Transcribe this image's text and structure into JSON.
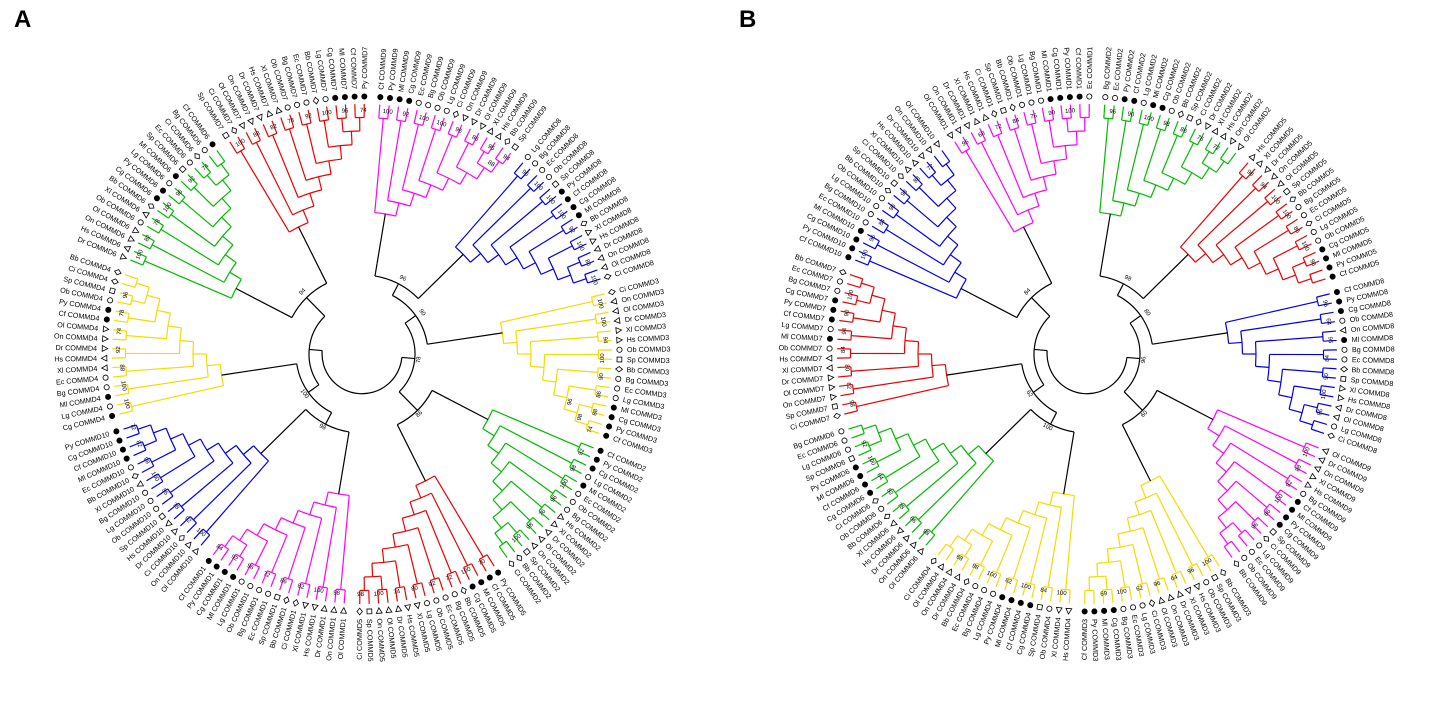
{
  "chart_data": {
    "type": "circular-phylogenetic-tree",
    "description": "Two circular phylogenetic trees (panels A and B) of COMMD1-COMMD10 proteins across 16 species. Branch clusters colored by gene family; tips carry species symbols; numbers are bootstrap values.",
    "colors": {
      "red": "#ee0000",
      "green": "#00bb00",
      "yellow": "#f2dc00",
      "blue": "#0000ee",
      "magenta": "#ff00ff",
      "black": "#000000"
    },
    "species_symbols": {
      "Py": "circle-filled",
      "Cf": "circle-filled",
      "Ml": "circle-filled",
      "Cg": "circle-filled",
      "Lg": "circle-open",
      "Ob": "circle-open",
      "Bg": "circle-open",
      "Ec": "circle-open",
      "Hs": "triangle-up",
      "Xl": "triangle-up",
      "Dr": "triangle-down",
      "Ol": "triangle-down",
      "On": "triangle-down",
      "Sp": "square-open",
      "Bb": "diamond-open",
      "Ci": "diamond-open"
    },
    "panels": [
      {
        "label": "A",
        "backbone_bootstraps": [
          96,
          90,
          86,
          78,
          98,
          100,
          94
        ],
        "clusters": [
          {
            "gene": "COMMD9",
            "color": "magenta",
            "bootstraps": [
              100,
              92,
              100,
              100,
              96,
              86,
              95,
              94,
              88
            ],
            "species_order": [
              "Cf",
              "Py",
              "Ml",
              "Cg",
              "Ec",
              "Bg",
              "Ob",
              "Lg",
              "Ci",
              "On",
              "Dr",
              "Ol",
              "Xl",
              "Hs",
              "Bb",
              "Sp"
            ]
          },
          {
            "gene": "COMMD8",
            "color": "blue",
            "bootstraps": [
              96,
              100,
              100,
              100,
              92,
              100,
              86,
              100
            ],
            "species_order": [
              "Lg",
              "Bg",
              "Ec",
              "Ob",
              "Sp",
              "Py",
              "Cf",
              "Cg",
              "Ml",
              "Bb",
              "Xl",
              "Hs",
              "Dr",
              "On",
              "Ol",
              "Ci"
            ]
          },
          {
            "gene": "COMMD3",
            "color": "yellow",
            "bootstraps": [
              100,
              100,
              94,
              100,
              90,
              86,
              88,
              74,
              98,
              96
            ],
            "species_order": [
              "Ci",
              "On",
              "Ol",
              "Dr",
              "Xl",
              "Hs",
              "Ob",
              "Sp",
              "Bb",
              "Bg",
              "Ec",
              "Lg",
              "Ml",
              "Cg",
              "Py",
              "Cf"
            ]
          },
          {
            "gene": "COMMD2",
            "color": "green",
            "bootstraps": [
              92,
              98,
              100,
              96,
              76,
              98,
              100
            ],
            "species_order": [
              "Cf",
              "Py",
              "Cg",
              "Lg",
              "Ml",
              "Ec",
              "Ob",
              "Bg",
              "Hs",
              "Xl",
              "Dr",
              "Ol",
              "On",
              "Sp",
              "Bb",
              "Ci"
            ]
          },
          {
            "gene": "COMMD5",
            "color": "red",
            "bootstraps": [
              70,
              100,
              72,
              92,
              80,
              74,
              100,
              98
            ],
            "species_order": [
              "Py",
              "Cf",
              "Ml",
              "Cg",
              "Bb",
              "Bg",
              "Ec",
              "Ob",
              "Lg",
              "Xl",
              "Hs",
              "Dr",
              "Ol",
              "On",
              "Sp",
              "Ci"
            ]
          },
          {
            "gene": "COMMD1",
            "color": "magenta",
            "bootstraps": [
              98,
              100,
              82,
              86,
              72,
              96,
              92,
              84
            ],
            "species_order": [
              "Ol",
              "On",
              "Dr",
              "Hs",
              "Xl",
              "Ci",
              "Bb",
              "Sp",
              "Ec",
              "Bg",
              "Ob",
              "Lg",
              "Ml",
              "Cg",
              "Py",
              "Cf"
            ]
          },
          {
            "gene": "COMMD10",
            "color": "blue",
            "bootstraps": [
              100,
              92,
              78,
              86,
              100,
              98,
              82,
              72
            ],
            "species_order": [
              "Ol",
              "On",
              "Ci",
              "Dr",
              "Hs",
              "Sp",
              "Ob",
              "Lg",
              "Bg",
              "Xl",
              "Bb",
              "Ec",
              "Ml",
              "Cf",
              "Cg",
              "Py"
            ]
          },
          {
            "gene": "COMMD4",
            "color": "yellow",
            "bootstraps": [
              100,
              100,
              88,
              92,
              74,
              78,
              96
            ],
            "species_order": [
              "Cg",
              "Lg",
              "Ml",
              "Bg",
              "Ec",
              "Xl",
              "Hs",
              "Dr",
              "On",
              "Ol",
              "Cf",
              "Py",
              "Ob",
              "Sp",
              "Ci",
              "Bb"
            ]
          },
          {
            "gene": "COMMD6",
            "color": "green",
            "bootstraps": [
              100,
              82,
              78,
              100,
              96,
              92,
              74
            ],
            "species_order": [
              "Dr",
              "Hs",
              "On",
              "Ol",
              "Ob",
              "Xl",
              "Bb",
              "Cg",
              "Py",
              "Lg",
              "Ml",
              "Sp",
              "Ec",
              "Ci",
              "Bg",
              "Cf"
            ]
          },
          {
            "gene": "COMMD7",
            "color": "red",
            "bootstraps": [
              100,
              88,
              82,
              78,
              92,
              100,
              96,
              74
            ],
            "species_order": [
              "Sp",
              "Ci",
              "Ol",
              "On",
              "Dr",
              "Hs",
              "Xl",
              "Ob",
              "Bg",
              "Ec",
              "Bb",
              "Lg",
              "Cg",
              "Ml",
              "Cf",
              "Py"
            ]
          }
        ]
      },
      {
        "label": "B",
        "backbone_bootstraps": [
          98,
          80,
          60,
          96,
          100,
          62,
          84
        ],
        "clusters": [
          {
            "gene": "COMMD2",
            "color": "green",
            "bootstraps": [
              96,
              90,
              100,
              98,
              86,
              76,
              72
            ],
            "species_order": [
              "Bg",
              "Ec",
              "Py",
              "Cf",
              "Lg",
              "Ml",
              "Cg",
              "Ob",
              "Bb",
              "Sp",
              "Ci",
              "Dr",
              "Xl",
              "Hs",
              "On",
              "Ol"
            ]
          },
          {
            "gene": "COMMD5",
            "color": "red",
            "bootstraps": [
              98,
              94,
              100,
              100,
              86,
              100,
              96
            ],
            "species_order": [
              "Hs",
              "Xl",
              "Dr",
              "On",
              "Ol",
              "Sp",
              "Bb",
              "Bg",
              "Ec",
              "Ci",
              "Lg",
              "Ob",
              "Cg",
              "Ml",
              "Py",
              "Cf"
            ]
          },
          {
            "gene": "COMMD8",
            "color": "blue",
            "bootstraps": [
              96,
              64,
              96,
              84,
              90,
              100,
              96
            ],
            "species_order": [
              "Cf",
              "Py",
              "Cg",
              "Ob",
              "On",
              "Ml",
              "Bg",
              "Ec",
              "Bb",
              "Sp",
              "Xl",
              "Hs",
              "Dr",
              "Ol",
              "Lg",
              "Ci"
            ]
          },
          {
            "gene": "COMMD9",
            "color": "magenta",
            "bootstraps": [
              100,
              88,
              92,
              100,
              86,
              96
            ],
            "species_order": [
              "Ol",
              "Dr",
              "On",
              "Xl",
              "Hs",
              "Bg",
              "Cf",
              "Ml",
              "Py",
              "Cg",
              "Sp",
              "Ci",
              "Lg",
              "Ec",
              "Ob",
              "Bb"
            ]
          },
          {
            "gene": "COMMD3",
            "color": "yellow",
            "bootstraps": [
              100,
              96,
              64,
              96,
              62,
              100,
              69
            ],
            "species_order": [
              "Bb",
              "Sp",
              "Ob",
              "Hs",
              "Xl",
              "Dr",
              "On",
              "Ol",
              "Ci",
              "Lg",
              "Ec",
              "Bg",
              "Cg",
              "Ml",
              "Py",
              "Cf"
            ]
          },
          {
            "gene": "COMMD4",
            "color": "yellow",
            "bootstraps": [
              100,
              84,
              100,
              62,
              100,
              98,
              68
            ],
            "species_order": [
              "Hs",
              "Xl",
              "Ob",
              "Sp",
              "Cg",
              "Cf",
              "Ml",
              "Py",
              "Lg",
              "Bg",
              "Ec",
              "Bb",
              "Dr",
              "On",
              "Ol",
              "Ci"
            ]
          },
          {
            "gene": "COMMD6",
            "color": "green",
            "bootstraps": [
              98,
              66,
              78,
              82,
              64,
              100,
              92
            ],
            "species_order": [
              "Ol",
              "On",
              "Dr",
              "Hs",
              "Xl",
              "Bb",
              "Ob",
              "Ci",
              "Cg",
              "Cf",
              "Ml",
              "Py",
              "Sp",
              "Lg",
              "Ec",
              "Bg"
            ]
          },
          {
            "gene": "COMMD7",
            "color": "red",
            "bootstraps": [
              98,
              62,
              80,
              84,
              94,
              90,
              100
            ],
            "species_order": [
              "Ci",
              "Sp",
              "On",
              "Ol",
              "Dr",
              "Xl",
              "Hs",
              "Ob",
              "Ml",
              "Lg",
              "Cf",
              "Py",
              "Cg",
              "Bg",
              "Ec",
              "Bb"
            ]
          },
          {
            "gene": "COMMD10",
            "color": "blue",
            "bootstraps": [
              100,
              96,
              84,
              96,
              98,
              88,
              72
            ],
            "species_order": [
              "Cf",
              "Py",
              "Cg",
              "Ml",
              "Ec",
              "Bg",
              "Lg",
              "Ob",
              "Bb",
              "Sp",
              "Ci",
              "Xl",
              "Hs",
              "Dr",
              "On",
              "Ol"
            ]
          },
          {
            "gene": "COMMD1",
            "color": "magenta",
            "bootstraps": [
              96,
              68,
              72,
              84,
              76,
              90,
              100
            ],
            "species_order": [
              "Ol",
              "On",
              "Dr",
              "Xl",
              "Hs",
              "Ci",
              "Sp",
              "Bb",
              "Ob",
              "Lg",
              "Bg",
              "Ml",
              "Cg",
              "Py",
              "Cf",
              "Ec"
            ]
          }
        ]
      }
    ]
  }
}
